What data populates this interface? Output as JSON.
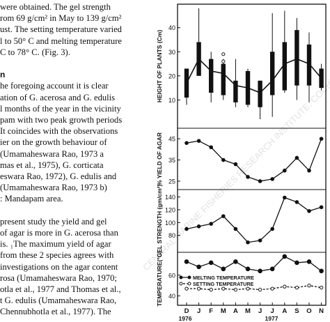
{
  "text_lines": [
    "were obtained.  The gel strength",
    "rom 69 g/cm² in  May to 139 g/cm²",
    "ust.  The setting temperature varied",
    "l to 50° C and melting temperature",
    "C to 78° C.  (Fig. 3).",
    "",
    "n",
    "he foregoing account it is clear",
    "ation of G. acerosa  and G. edulis",
    "l months of the year in the vicinity",
    "pam with two peak growth periods",
    " It coincides with the observations",
    "ier on the growth behaviour  of",
    "(Umamaheswara Rao, 1973 a",
    "mas  et  al., 1975),  G.  corticata",
    "eswara  Rao, 1972),  G. edulis  and",
    "(Umamaheswara  Rao,  1973 b)",
    ": Mandapam area.",
    "",
    "present study  the yield and gel",
    "of agar is more in  G. acerosa  than",
    "is.  ₁The maximum yield of agar",
    "from these 2 species agrees with",
    "investigations on the agar content",
    "rosa  (Umamaheswara  Rao,  1970;",
    "otla  et al., 1977 and Thomas et al.,",
    "t  G.  edulis  (Umamaheswara Rao,",
    "  Chennubhotla  et  al.,  1977).   The"
  ],
  "heading_line_index": 6,
  "watermark_text": "CENTRAL MARINE FISHERIES RESEARCH INSTITUTE, COCHIN",
  "chart_data": {
    "type": "line",
    "x_tick_labels": [
      "D",
      "J",
      "F",
      "M",
      "A",
      "M",
      "J",
      "J",
      "A",
      "S",
      "O",
      "N"
    ],
    "year_labels": [
      "1976",
      "1977"
    ],
    "panels": [
      {
        "ylabel": "HEIGHT OF PLANTS (Cm)",
        "type": "box",
        "ylim": [
          0,
          48
        ],
        "yticks": [
          10,
          20,
          30,
          40
        ],
        "mean": [
          17,
          27,
          22,
          21,
          16,
          15,
          13,
          18,
          25,
          27,
          25,
          19
        ],
        "box_low": [
          11,
          20,
          13,
          12,
          9,
          8,
          7,
          12,
          14,
          16,
          16,
          15
        ],
        "box_high": [
          23,
          34,
          27,
          25,
          18,
          22,
          18,
          30,
          34,
          39,
          33,
          23
        ],
        "whisker_low": [
          8,
          20,
          9,
          10,
          7,
          7,
          2,
          3,
          13,
          10,
          9,
          14
        ],
        "whisker_high": [
          23,
          48,
          30,
          27,
          27,
          23,
          18,
          46,
          47,
          44,
          38,
          25
        ],
        "outliers": [
          {
            "x": "M",
            "y": 29
          },
          {
            "x": "M",
            "y": 26
          }
        ]
      },
      {
        "ylabel": "% YIELD OF AGAR",
        "ylim": [
          23,
          48
        ],
        "yticks": [
          25,
          35,
          45
        ],
        "values": [
          43,
          44,
          41,
          35,
          33,
          27,
          25,
          26,
          30,
          36,
          30,
          45
        ]
      },
      {
        "ylabel": "GEL STRENGTH (gm/cm²)",
        "ylim": [
          60,
          145
        ],
        "yticks": [
          80,
          100,
          120,
          140
        ],
        "values": [
          90,
          94,
          98,
          110,
          90,
          69,
          72,
          90,
          139,
          132,
          118,
          124
        ]
      },
      {
        "ylabel": "TEMPERATURE(°C)",
        "ylim": [
          35,
          78
        ],
        "yticks": [
          40,
          60
        ],
        "series": [
          {
            "name": "MELTING TEMPERATURE",
            "values": [
              73,
              68,
              72,
              66,
              73,
              66,
              64,
              66,
              78,
              72,
              73,
              64
            ]
          },
          {
            "name": "SETTING TEMPERATURE",
            "values": [
              47,
              47,
              46,
              47,
              46,
              47,
              46,
              47,
              49,
              48,
              50,
              48
            ]
          }
        ]
      }
    ]
  }
}
